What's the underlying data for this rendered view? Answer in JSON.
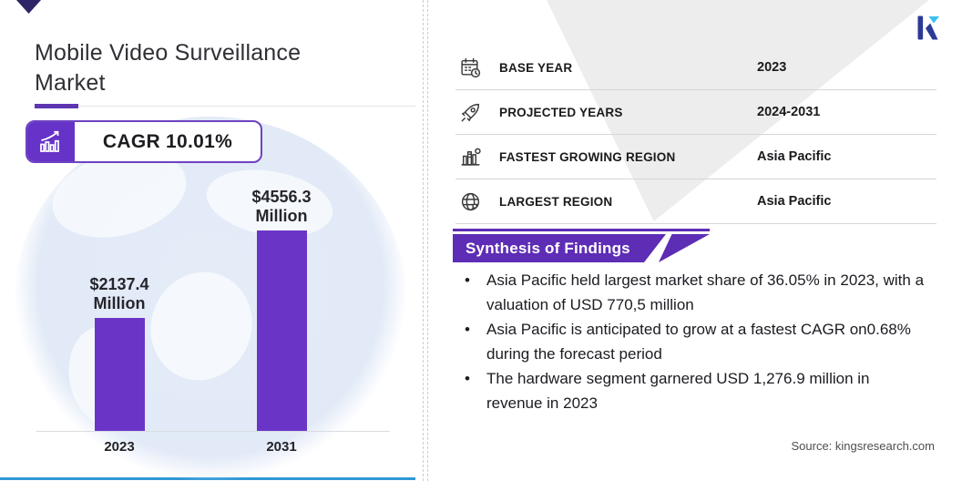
{
  "header": {
    "title": "Mobile Video Surveillance Market",
    "cagr_label": "CAGR 10.01%"
  },
  "facts": {
    "rows": [
      {
        "icon": "calendar-icon",
        "label": "BASE YEAR",
        "value": "2023"
      },
      {
        "icon": "rocket-icon",
        "label": "PROJECTED YEARS",
        "value": "2024-2031"
      },
      {
        "icon": "growth-region-icon",
        "label": "FASTEST GROWING REGION",
        "value": "Asia Pacific"
      },
      {
        "icon": "globe-icon",
        "label": "LARGEST REGION",
        "value": "Asia Pacific"
      }
    ]
  },
  "synthesis": {
    "title": "Synthesis of Findings",
    "bullets": [
      "Asia Pacific held largest market share of 36.05% in 2023, with a valuation of USD 770,5 million",
      "Asia Pacific is anticipated to grow at a fastest CAGR on0.68% during the forecast period",
      "The hardware segment garnered USD 1,276.9 million in revenue in 2023"
    ]
  },
  "source": "Source: kingsresearch.com",
  "colors": {
    "bar_purple": "#6a35c7",
    "banner_purple": "#5e2db5",
    "badge_purple": "#6633c9",
    "accent_blue": "#2f98d6",
    "chevron_gray": "#ededed",
    "logo_navy": "#2b3a96",
    "logo_cyan": "#3ac2ef"
  },
  "chart_data": {
    "type": "bar",
    "title": "Mobile Video Surveillance Market",
    "unit": "USD Million",
    "categories": [
      "2023",
      "2031"
    ],
    "values": [
      2137.4,
      4556.3
    ],
    "value_labels": [
      [
        "$2137.4",
        "Million"
      ],
      [
        "$4556.3",
        "Million"
      ]
    ],
    "cagr_percent": 10.01,
    "xlabel": "",
    "ylabel": "",
    "grid": false,
    "legend": false
  }
}
